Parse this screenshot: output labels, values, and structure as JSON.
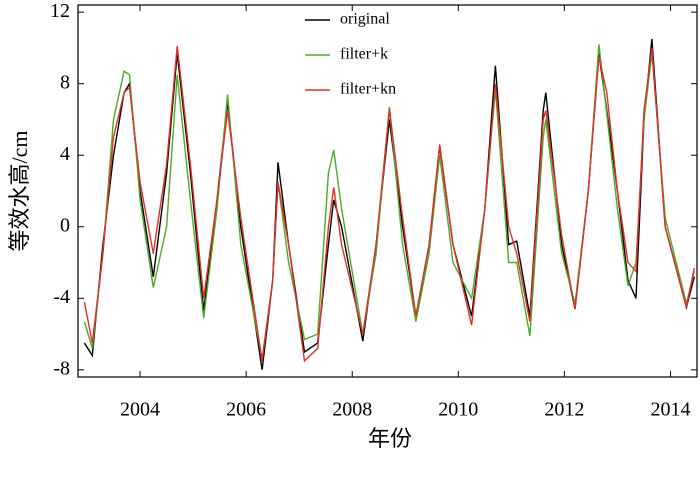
{
  "chart_data": {
    "type": "line",
    "x_label": "年份",
    "y_label": "等效水高/cm",
    "x": [
      2002.95,
      2003.1,
      2003.3,
      2003.5,
      2003.7,
      2003.8,
      2004.0,
      2004.25,
      2004.5,
      2004.7,
      2004.95,
      2005.2,
      2005.45,
      2005.65,
      2005.9,
      2006.3,
      2006.5,
      2006.6,
      2006.8,
      2007.1,
      2007.35,
      2007.55,
      2007.65,
      2007.8,
      2008.2,
      2008.45,
      2008.7,
      2008.95,
      2009.2,
      2009.45,
      2009.65,
      2009.9,
      2010.25,
      2010.5,
      2010.7,
      2010.95,
      2011.1,
      2011.35,
      2011.6,
      2011.65,
      2011.95,
      2012.2,
      2012.45,
      2012.65,
      2012.8,
      2013.0,
      2013.2,
      2013.35,
      2013.5,
      2013.65,
      2013.9,
      2014.3,
      2014.45
    ],
    "series": [
      {
        "name": "original",
        "color": "#000000",
        "values": [
          -6.5,
          -7.2,
          -1,
          4,
          7.5,
          8,
          2,
          -2.8,
          3,
          9.7,
          3,
          -4.7,
          1.5,
          7,
          0,
          -8,
          -3,
          3.6,
          -1,
          -7,
          -6.5,
          -1,
          1.5,
          0,
          -6.4,
          -1,
          6,
          0,
          -5,
          -1,
          4.5,
          -1,
          -5,
          1,
          9,
          -1,
          -0.8,
          -5,
          6.5,
          7.5,
          -1,
          -4.6,
          2,
          9.7,
          6.5,
          2,
          -3,
          -4,
          6,
          10.5,
          0,
          -4.5,
          -2.8
        ]
      },
      {
        "name": "filter+k",
        "color": "#4daa2a",
        "values": [
          -5.3,
          -6.8,
          -1.5,
          6,
          8.7,
          8.5,
          1.5,
          -3.4,
          0,
          8.5,
          1.5,
          -5.1,
          1,
          7.4,
          -1,
          -7.4,
          -3,
          2.5,
          -2,
          -6.3,
          -6,
          3,
          4.3,
          1,
          -6,
          -1.5,
          6.7,
          -1,
          -5.3,
          -1.5,
          4,
          -2,
          -4,
          1,
          7.7,
          -2,
          -2,
          -6.1,
          5,
          6,
          -1.5,
          -4.3,
          2,
          10.2,
          6.3,
          1,
          -3.3,
          -2,
          6,
          9.7,
          0.5,
          -4.3,
          -2.5
        ]
      },
      {
        "name": "filter+kn",
        "color": "#e0302a",
        "values": [
          -4.2,
          -6.5,
          -1.5,
          5,
          7.5,
          7.8,
          2.5,
          -1.5,
          3.5,
          10.1,
          3.5,
          -4,
          1.5,
          6.5,
          0.5,
          -7.5,
          -3,
          2.5,
          -1,
          -7.5,
          -6.8,
          0,
          2.2,
          -1,
          -6,
          -1,
          6.6,
          0.5,
          -5,
          -1,
          4.6,
          -1,
          -5.5,
          1,
          8,
          0,
          -1.5,
          -5.3,
          6,
          6.5,
          -0.5,
          -4.6,
          2,
          9.5,
          7.5,
          2,
          -2,
          -2.5,
          6.5,
          10,
          0,
          -4.5,
          -2.3
        ]
      }
    ],
    "xlim": [
      2002.83,
      2014.5
    ],
    "ylim": [
      -8.4,
      12.4
    ],
    "xticks": [
      2004,
      2006,
      2008,
      2010,
      2012,
      2014
    ],
    "yticks": [
      -8,
      -4,
      0,
      4,
      8,
      12
    ],
    "legend": "upper center"
  }
}
